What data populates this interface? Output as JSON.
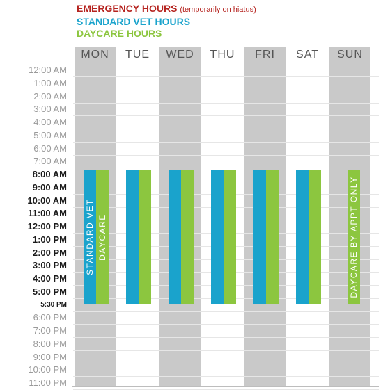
{
  "legend": {
    "emergency": {
      "label": "EMERGENCY HOURS",
      "note": "(temporarily on hiatus)",
      "color": "#b5231f"
    },
    "standard": {
      "label": "STANDARD VET HOURS",
      "color": "#1aa3cc"
    },
    "daycare": {
      "label": "DAYCARE HOURS",
      "color": "#8cc63f"
    }
  },
  "days": [
    "MON",
    "TUE",
    "WED",
    "THU",
    "FRI",
    "SAT",
    "SUN"
  ],
  "times": [
    "12:00 AM",
    "1:00 AM",
    "2:00 AM",
    "3:00 AM",
    "4:00 AM",
    "5:00 AM",
    "6:00 AM",
    "7:00 AM",
    "8:00 AM",
    "9:00 AM",
    "10:00 AM",
    "11:00 AM",
    "12:00 PM",
    "1:00 PM",
    "2:00 PM",
    "3:00 PM",
    "4:00 PM",
    "5:00 PM",
    "5:30 PM",
    "6:00 PM",
    "7:00 PM",
    "8:00 PM",
    "9:00 PM",
    "10:00 PM",
    "11:00 PM"
  ],
  "shaded_columns": [
    "MON",
    "WED",
    "FRI",
    "SUN"
  ],
  "schedule": [
    {
      "day": "MON",
      "standard": {
        "start": 8,
        "end": 17.5
      },
      "daycare": {
        "start": 8,
        "end": 17.5
      },
      "standard_label": "STANDARD VET",
      "daycare_label": "DAYCARE"
    },
    {
      "day": "TUE",
      "standard": {
        "start": 8,
        "end": 17.5
      },
      "daycare": {
        "start": 8,
        "end": 17.5
      }
    },
    {
      "day": "WED",
      "standard": {
        "start": 8,
        "end": 17.5
      },
      "daycare": {
        "start": 8,
        "end": 17.5
      }
    },
    {
      "day": "THU",
      "standard": {
        "start": 8,
        "end": 17.5
      },
      "daycare": {
        "start": 8,
        "end": 17.5
      }
    },
    {
      "day": "FRI",
      "standard": {
        "start": 8,
        "end": 17.5
      },
      "daycare": {
        "start": 8,
        "end": 17.5
      }
    },
    {
      "day": "SAT",
      "standard": {
        "start": 8,
        "end": 17.5
      },
      "daycare": {
        "start": 8,
        "end": 17.5
      }
    },
    {
      "day": "SUN",
      "daycare": {
        "start": 8,
        "end": 17.5
      },
      "daycare_label": "DAYCARE BY APPT ONLY"
    }
  ],
  "colors": {
    "shade": "#c9c9c9",
    "standard": "#1aa3cc",
    "daycare": "#8cc63f"
  }
}
